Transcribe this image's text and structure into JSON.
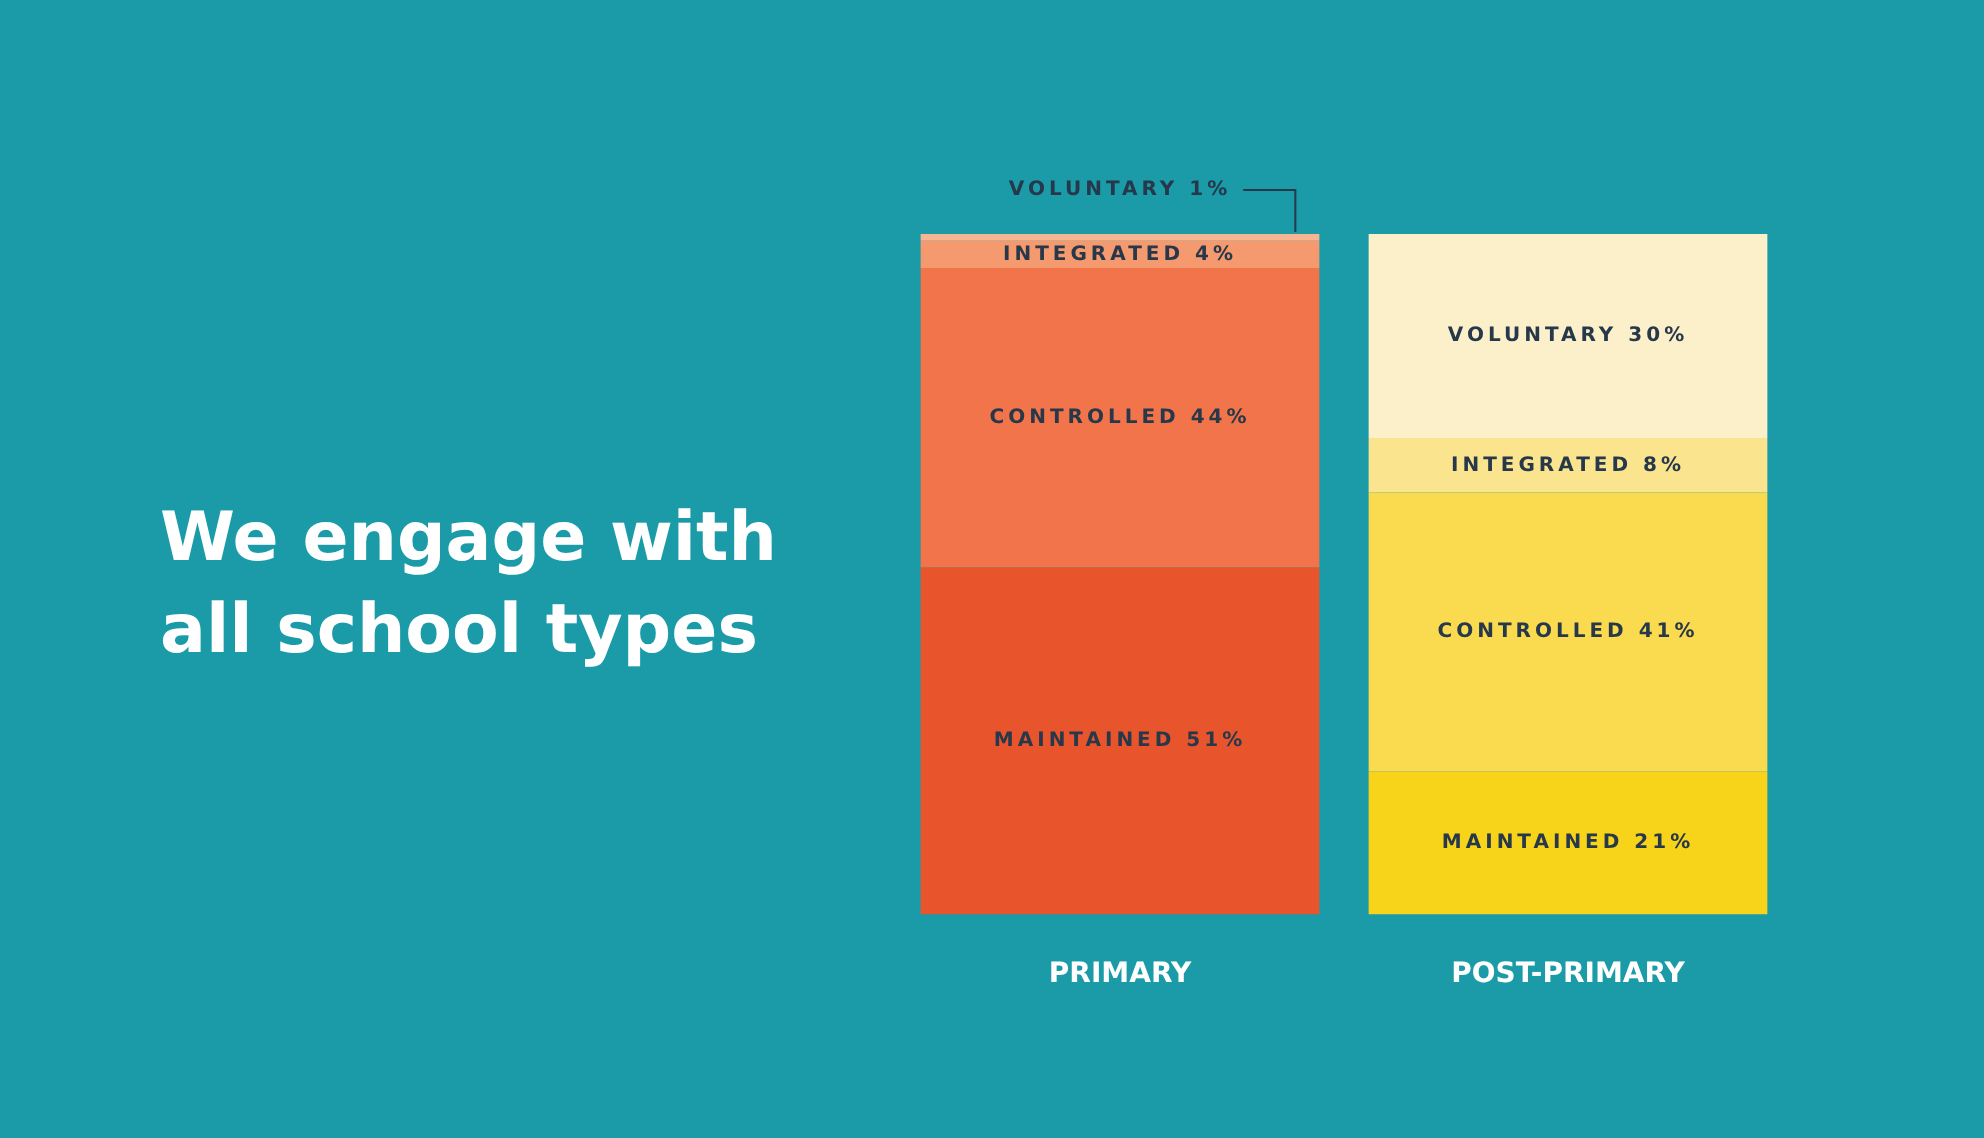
{
  "chart_data": {
    "type": "bar",
    "title": "We engage with all school types",
    "stacked": true,
    "categories": [
      "PRIMARY",
      "POST-PRIMARY"
    ],
    "ylim": [
      0,
      100
    ],
    "tick_labels": "x",
    "grid": false,
    "legend": false,
    "series": [
      {
        "colors": [
          "#e8552d",
          "#f7d31a"
        ],
        "values": [
          51,
          21
        ],
        "value_labels": [
          "MAINTAINED 51%",
          "MAINTAINED 21%"
        ]
      },
      {
        "colors": [
          "#f2744a",
          "#fada4f"
        ],
        "values": [
          44,
          41
        ],
        "value_labels": [
          "CONTROLLED 44%",
          "CONTROLLED 41%"
        ]
      },
      {
        "colors": [
          "#f5996f",
          "#fbe48e"
        ],
        "values": [
          4,
          8
        ],
        "value_labels": [
          "INTEGRATED 4%",
          "INTEGRATED 8%"
        ]
      },
      {
        "colors": [
          "#f7b592",
          "#fcf0cb"
        ],
        "values": [
          1,
          30
        ],
        "value_labels": [
          "VOLUNTARY 1%",
          "VOLUNTARY 30%"
        ]
      }
    ]
  }
}
